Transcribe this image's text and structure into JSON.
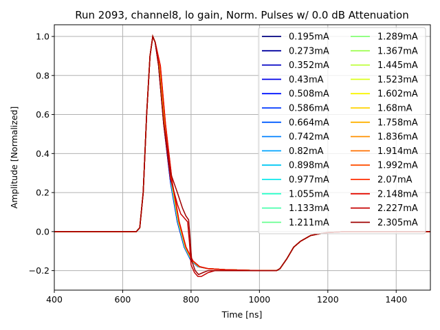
{
  "chart_data": {
    "type": "line",
    "title": "Run 2093, channel8, lo gain, Norm. Pulses w/ 0.0 dB Attenuation",
    "xlabel": "Time [ns]",
    "ylabel": "Amplitude [Normalized]",
    "xlim": [
      400,
      1500
    ],
    "ylim": [
      -0.3,
      1.06
    ],
    "xticks": [
      400,
      600,
      800,
      1000,
      1200,
      1400
    ],
    "yticks": [
      -0.2,
      0.0,
      0.2,
      0.4,
      0.6,
      0.8,
      1.0
    ],
    "xtick_labels": [
      "400",
      "600",
      "800",
      "1000",
      "1200",
      "1400"
    ],
    "ytick_labels": [
      "−0.2",
      "0.0",
      "0.2",
      "0.4",
      "0.6",
      "0.8",
      "1.0"
    ],
    "grid": true,
    "legend_position": "top-right",
    "legend_columns": 2,
    "base_pulse": {
      "x": [
        400,
        640,
        650,
        660,
        670,
        680,
        688,
        695,
        705,
        720,
        740,
        760,
        780,
        800,
        820,
        850,
        900,
        1000,
        1050,
        1060,
        1080,
        1100,
        1120,
        1150,
        1180,
        1200,
        1250,
        1300,
        1400,
        1500
      ],
      "y": [
        0.0,
        0.0,
        0.02,
        0.2,
        0.6,
        0.9,
        1.0,
        0.97,
        0.85,
        0.55,
        0.25,
        0.05,
        -0.08,
        -0.15,
        -0.18,
        -0.19,
        -0.195,
        -0.2,
        -0.2,
        -0.19,
        -0.14,
        -0.08,
        -0.05,
        -0.02,
        -0.01,
        -0.005,
        0.0,
        0.0,
        0.0,
        0.0
      ]
    },
    "series": [
      {
        "name": "0.195mA",
        "color": "#00007f"
      },
      {
        "name": "0.273mA",
        "color": "#00009f"
      },
      {
        "name": "0.352mA",
        "color": "#0000c4"
      },
      {
        "name": "0.43mA",
        "color": "#0000e8"
      },
      {
        "name": "0.508mA",
        "color": "#0014ff"
      },
      {
        "name": "0.586mA",
        "color": "#0038ff"
      },
      {
        "name": "0.664mA",
        "color": "#005cff"
      },
      {
        "name": "0.742mA",
        "color": "#0080ff"
      },
      {
        "name": "0.82mA",
        "color": "#00a4ff"
      },
      {
        "name": "0.898mA",
        "color": "#00c8f4"
      },
      {
        "name": "0.977mA",
        "color": "#0ce8eb"
      },
      {
        "name": "1.055mA",
        "color": "#2cffca"
      },
      {
        "name": "1.133mA",
        "color": "#4affad"
      },
      {
        "name": "1.211mA",
        "color": "#66ff90"
      },
      {
        "name": "1.289mA",
        "color": "#83ff73"
      },
      {
        "name": "1.367mA",
        "color": "#a0ff56"
      },
      {
        "name": "1.445mA",
        "color": "#bdff39"
      },
      {
        "name": "1.523mA",
        "color": "#dbff1b"
      },
      {
        "name": "1.602mA",
        "color": "#f8f500"
      },
      {
        "name": "1.68mA",
        "color": "#ffd300"
      },
      {
        "name": "1.758mA",
        "color": "#ffb200"
      },
      {
        "name": "1.836mA",
        "color": "#ff9100"
      },
      {
        "name": "1.914mA",
        "color": "#ff7000"
      },
      {
        "name": "1.992mA",
        "color": "#ff4e00"
      },
      {
        "name": "2.07mA",
        "color": "#ff2d00"
      },
      {
        "name": "2.148mA",
        "color": "#e50c00"
      },
      {
        "name": "2.227mA",
        "color": "#c60000"
      },
      {
        "name": "2.305mA",
        "color": "#9f0000"
      }
    ],
    "dip_series": [
      {
        "name": "2.227mA",
        "x": [
          400,
          640,
          650,
          660,
          670,
          680,
          688,
          695,
          705,
          720,
          740,
          760,
          770,
          780,
          790,
          795,
          800,
          810,
          820,
          830,
          840,
          850,
          870,
          900,
          1000,
          1050,
          1060,
          1080,
          1100,
          1120,
          1150,
          1180,
          1200,
          1250,
          1300,
          1400,
          1500
        ],
        "y": [
          0.0,
          0.0,
          0.02,
          0.2,
          0.6,
          0.9,
          1.0,
          0.97,
          0.85,
          0.55,
          0.27,
          0.14,
          0.09,
          0.07,
          0.05,
          -0.05,
          -0.17,
          -0.21,
          -0.23,
          -0.23,
          -0.22,
          -0.21,
          -0.2,
          -0.2,
          -0.2,
          -0.2,
          -0.19,
          -0.14,
          -0.08,
          -0.05,
          -0.02,
          -0.01,
          -0.005,
          0.0,
          0.0,
          0.0,
          0.0
        ]
      },
      {
        "name": "2.305mA",
        "x": [
          400,
          640,
          650,
          660,
          670,
          680,
          688,
          695,
          705,
          720,
          740,
          760,
          775,
          785,
          793,
          797,
          802,
          812,
          822,
          835,
          850,
          870,
          900,
          1000,
          1050,
          1060,
          1080,
          1100,
          1120,
          1150,
          1180,
          1200,
          1250,
          1300,
          1400,
          1500
        ],
        "y": [
          0.0,
          0.0,
          0.02,
          0.2,
          0.6,
          0.9,
          1.0,
          0.97,
          0.85,
          0.56,
          0.3,
          0.2,
          0.12,
          0.08,
          0.06,
          -0.03,
          -0.15,
          -0.2,
          -0.22,
          -0.21,
          -0.2,
          -0.2,
          -0.2,
          -0.2,
          -0.2,
          -0.19,
          -0.14,
          -0.08,
          -0.05,
          -0.02,
          -0.01,
          -0.005,
          0.0,
          0.0,
          0.0,
          0.0
        ]
      }
    ]
  }
}
